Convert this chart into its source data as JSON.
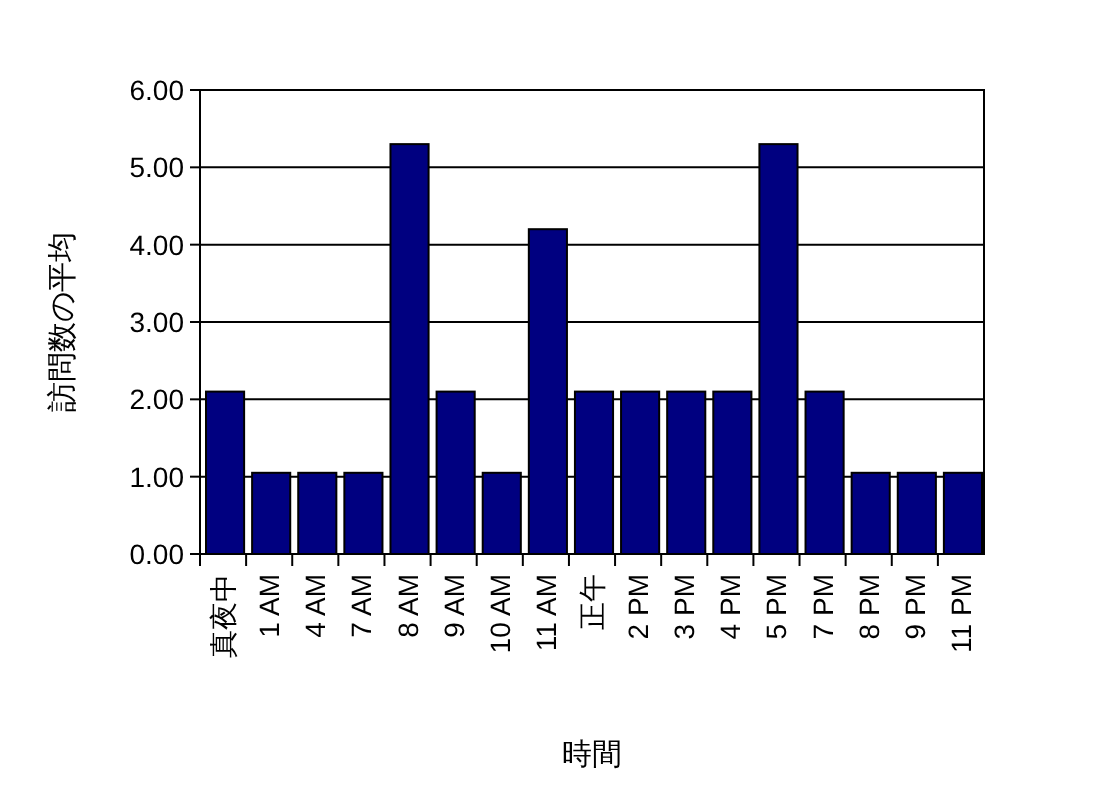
{
  "chart_data": {
    "type": "bar",
    "xlabel": "時間",
    "ylabel": "訪問数の平均",
    "categories": [
      "真夜中",
      "1 AM",
      "4 AM",
      "7 AM",
      "8 AM",
      "9 AM",
      "10 AM",
      "11 AM",
      "正午",
      "2 PM",
      "3 PM",
      "4 PM",
      "5 PM",
      "7 PM",
      "8 PM",
      "9 PM",
      "11 PM"
    ],
    "values": [
      2.1,
      1.05,
      1.05,
      1.05,
      5.3,
      2.1,
      1.05,
      4.2,
      2.1,
      2.1,
      2.1,
      2.1,
      5.3,
      2.1,
      1.05,
      1.05,
      1.05
    ],
    "color": "#000080",
    "ylim": [
      0,
      6
    ],
    "yticks": [
      {
        "value": 0,
        "label": "0.00"
      },
      {
        "value": 1,
        "label": "1.00"
      },
      {
        "value": 2,
        "label": "2.00"
      },
      {
        "value": 3,
        "label": "3.00"
      },
      {
        "value": 4,
        "label": "4.00"
      },
      {
        "value": 5,
        "label": "5.00"
      },
      {
        "value": 6,
        "label": "6.00"
      }
    ],
    "grid": "y",
    "legend": false
  }
}
